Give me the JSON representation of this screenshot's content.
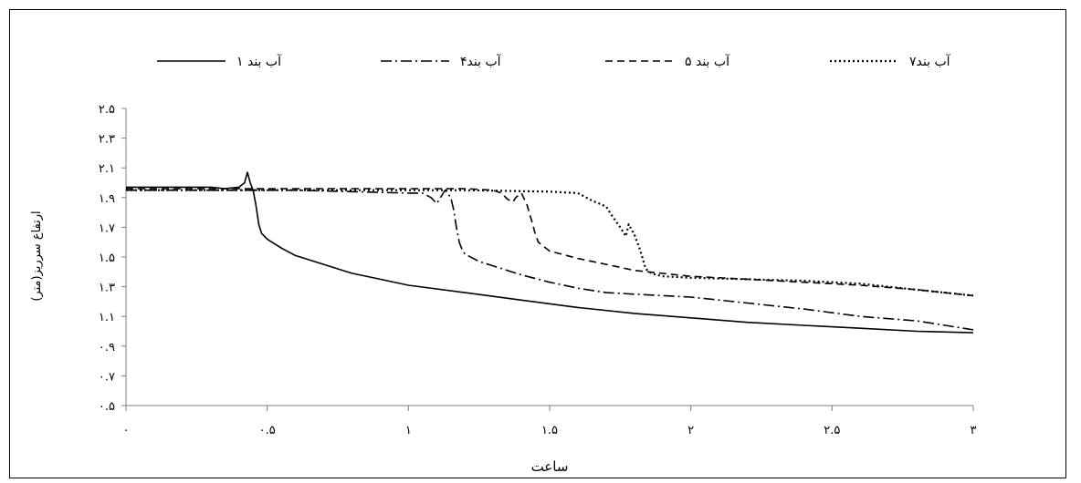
{
  "chart_data": {
    "type": "line",
    "title": "",
    "xlabel": "ساعت",
    "ylabel": "ارتفاع سرریز(متر)",
    "xlim": [
      0,
      3
    ],
    "ylim": [
      0.5,
      2.5
    ],
    "x_ticks": [
      0,
      0.5,
      1,
      1.5,
      2,
      2.5,
      3
    ],
    "x_tick_labels": [
      "۰",
      "۰.۵",
      "۱",
      "۱.۵",
      "۲",
      "۲.۵",
      "۳"
    ],
    "y_ticks": [
      0.5,
      0.7,
      0.9,
      1.1,
      1.3,
      1.5,
      1.7,
      1.9,
      2.1,
      2.3,
      2.5
    ],
    "y_tick_labels": [
      "۰.۵",
      "۰.۷",
      "۰.۹",
      "۱.۱",
      "۱.۳",
      "۱.۵",
      "۱.۷",
      "۱.۹",
      "۲.۱",
      "۲.۳",
      "۲.۵"
    ],
    "grid": false,
    "legend_position": "top",
    "series": [
      {
        "name": "آب بند ۱",
        "style": "solid",
        "x": [
          0,
          0.1,
          0.2,
          0.3,
          0.35,
          0.4,
          0.42,
          0.43,
          0.44,
          0.45,
          0.46,
          0.47,
          0.48,
          0.5,
          0.55,
          0.6,
          0.7,
          0.8,
          0.9,
          1.0,
          1.2,
          1.4,
          1.6,
          1.8,
          2.0,
          2.2,
          2.4,
          2.6,
          2.8,
          3.0
        ],
        "y": [
          1.97,
          1.97,
          1.97,
          1.97,
          1.96,
          1.97,
          2.0,
          2.07,
          2.0,
          1.95,
          1.85,
          1.72,
          1.66,
          1.62,
          1.56,
          1.51,
          1.45,
          1.39,
          1.35,
          1.31,
          1.26,
          1.21,
          1.16,
          1.12,
          1.09,
          1.06,
          1.04,
          1.02,
          1.0,
          0.99
        ]
      },
      {
        "name": "آب بند۴",
        "style": "dash-dot",
        "x": [
          0,
          0.2,
          0.4,
          0.6,
          0.8,
          1.0,
          1.05,
          1.08,
          1.1,
          1.12,
          1.13,
          1.15,
          1.16,
          1.17,
          1.18,
          1.19,
          1.2,
          1.25,
          1.3,
          1.4,
          1.5,
          1.6,
          1.7,
          1.8,
          2.0,
          2.2,
          2.4,
          2.6,
          2.8,
          3.0
        ],
        "y": [
          1.95,
          1.95,
          1.95,
          1.95,
          1.94,
          1.93,
          1.93,
          1.9,
          1.86,
          1.92,
          1.95,
          1.9,
          1.82,
          1.7,
          1.6,
          1.55,
          1.52,
          1.47,
          1.44,
          1.38,
          1.33,
          1.29,
          1.26,
          1.25,
          1.23,
          1.19,
          1.15,
          1.1,
          1.07,
          1.01
        ]
      },
      {
        "name": "آب بند ۵",
        "style": "dashed",
        "x": [
          0,
          0.3,
          0.6,
          0.9,
          1.2,
          1.3,
          1.33,
          1.35,
          1.37,
          1.38,
          1.4,
          1.42,
          1.44,
          1.45,
          1.46,
          1.48,
          1.5,
          1.6,
          1.7,
          1.8,
          2.0,
          2.2,
          2.4,
          2.6,
          2.8,
          3.0
        ],
        "y": [
          1.96,
          1.96,
          1.96,
          1.96,
          1.96,
          1.95,
          1.93,
          1.89,
          1.87,
          1.9,
          1.93,
          1.85,
          1.72,
          1.65,
          1.6,
          1.57,
          1.54,
          1.49,
          1.45,
          1.41,
          1.37,
          1.35,
          1.33,
          1.31,
          1.28,
          1.24
        ]
      },
      {
        "name": "آب بند۷",
        "style": "dotted",
        "x": [
          0,
          0.3,
          0.6,
          0.9,
          1.2,
          1.5,
          1.6,
          1.65,
          1.7,
          1.72,
          1.75,
          1.77,
          1.78,
          1.8,
          1.82,
          1.84,
          1.86,
          1.88,
          1.9,
          2.0,
          2.2,
          2.4,
          2.6,
          2.8,
          3.0
        ],
        "y": [
          1.95,
          1.95,
          1.95,
          1.95,
          1.95,
          1.94,
          1.93,
          1.88,
          1.84,
          1.78,
          1.7,
          1.64,
          1.72,
          1.65,
          1.55,
          1.42,
          1.39,
          1.38,
          1.37,
          1.36,
          1.35,
          1.34,
          1.32,
          1.28,
          1.24
        ]
      }
    ]
  }
}
